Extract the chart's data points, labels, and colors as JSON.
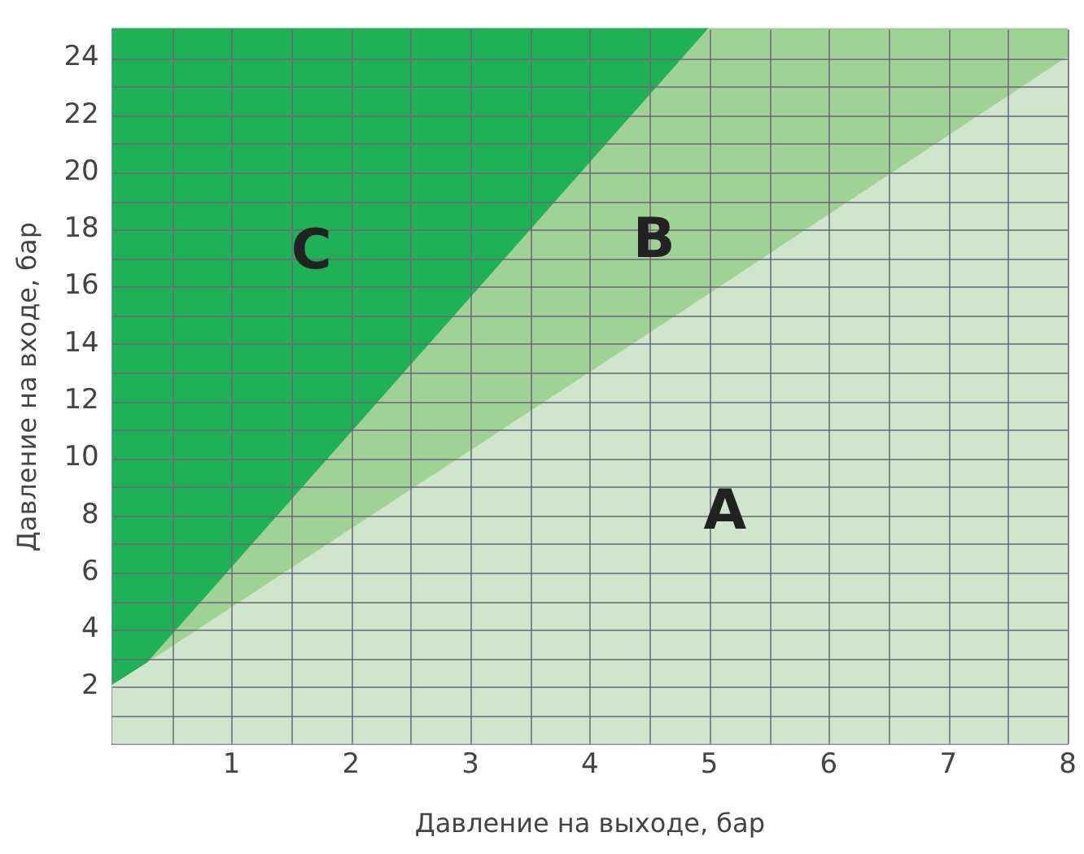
{
  "chart_data": {
    "type": "area",
    "stacked": true,
    "xlabel": "Давление на выходе, бар",
    "ylabel": "Давление на входе, бар",
    "x": [
      0,
      0.3,
      5,
      8
    ],
    "series": [
      {
        "name": "A",
        "color": "#cfe5cc",
        "values": [
          2,
          2.8,
          15.7,
          24
        ]
      },
      {
        "name": "B",
        "color": "#9fd293",
        "values": [
          0,
          0,
          9.3,
          1
        ]
      },
      {
        "name": "C",
        "color": "#1fb157",
        "x": [
          0,
          0.3,
          5
        ],
        "values": [
          23,
          22.2,
          0
        ]
      }
    ],
    "xlim": [
      0,
      8
    ],
    "ylim": [
      0,
      25
    ],
    "xticks": [
      {
        "value": 0.5,
        "label": null
      },
      1,
      {
        "value": 1.5,
        "label": null
      },
      2,
      {
        "value": 2.5,
        "label": null
      },
      3,
      {
        "value": 3.5,
        "label": null
      },
      4,
      {
        "value": 4.5,
        "label": null
      },
      5,
      {
        "value": 5.5,
        "label": null
      },
      6,
      {
        "value": 6.5,
        "label": null
      },
      7,
      {
        "value": 7.5,
        "label": null
      },
      8
    ],
    "yticks": [
      {
        "value": 1,
        "label": null
      },
      2,
      {
        "value": 3,
        "label": null
      },
      4,
      {
        "value": 5,
        "label": null
      },
      6,
      {
        "value": 7,
        "label": null
      },
      8,
      {
        "value": 9,
        "label": null
      },
      10,
      {
        "value": 11,
        "label": null
      },
      12,
      {
        "value": 13,
        "label": null
      },
      14,
      {
        "value": 15,
        "label": null
      },
      16,
      {
        "value": 17,
        "label": null
      },
      18,
      {
        "value": 19,
        "label": null
      },
      20,
      {
        "value": 21,
        "label": null
      },
      22,
      {
        "value": 23,
        "label": null
      },
      24
    ],
    "grid": true
  }
}
